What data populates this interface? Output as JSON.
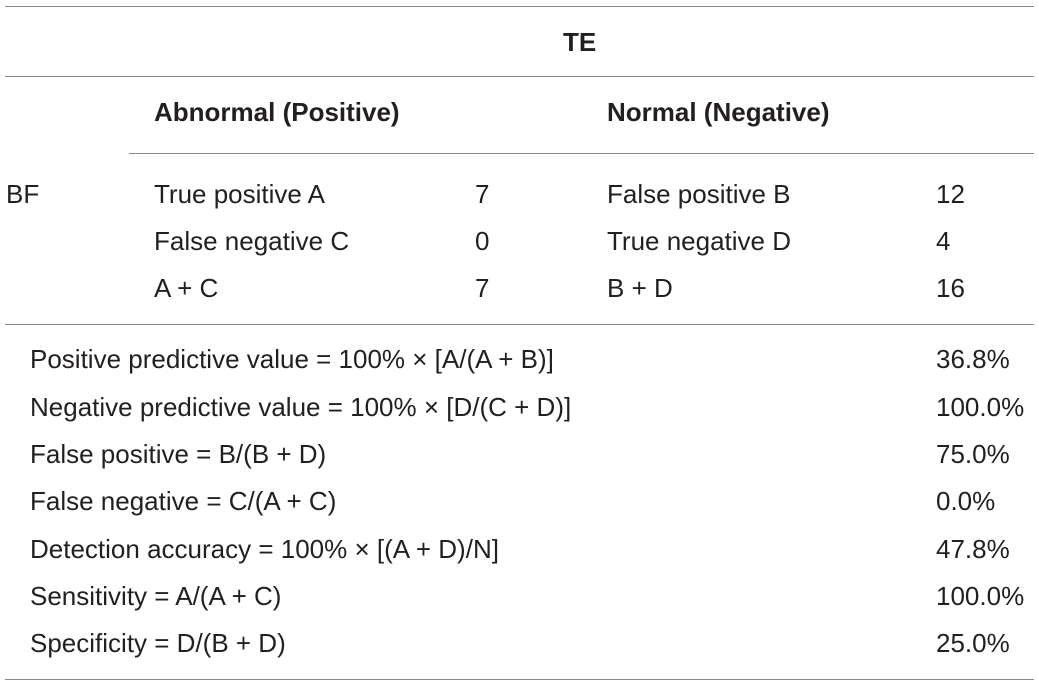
{
  "table": {
    "group_header": "TE",
    "col_headers": [
      "Abnormal (Positive)",
      "Normal (Negative)"
    ],
    "row_group_label": "BF",
    "rows": [
      {
        "label_a": "True positive A",
        "value_a": "7",
        "label_b": "False positive B",
        "value_b": "12"
      },
      {
        "label_a": "False negative C",
        "value_a": "0",
        "label_b": "True negative D",
        "value_b": "4"
      },
      {
        "label_a": "A + C",
        "value_a": "7",
        "label_b": "B + D",
        "value_b": "16"
      }
    ],
    "metrics": [
      {
        "label": "Positive predictive value = 100% × [A/(A + B)]",
        "value": "36.8%"
      },
      {
        "label": "Negative predictive value = 100% × [D/(C + D)]",
        "value": "100.0%"
      },
      {
        "label": "False positive = B/(B + D)",
        "value": "75.0%"
      },
      {
        "label": "False negative = C/(A + C)",
        "value": "0.0%"
      },
      {
        "label": "Detection accuracy = 100% × [(A + D)/N]",
        "value": "47.8%"
      },
      {
        "label": "Sensitivity = A/(A + C)",
        "value": "100.0%"
      },
      {
        "label": "Specificity = D/(B + D)",
        "value": "25.0%"
      }
    ]
  }
}
